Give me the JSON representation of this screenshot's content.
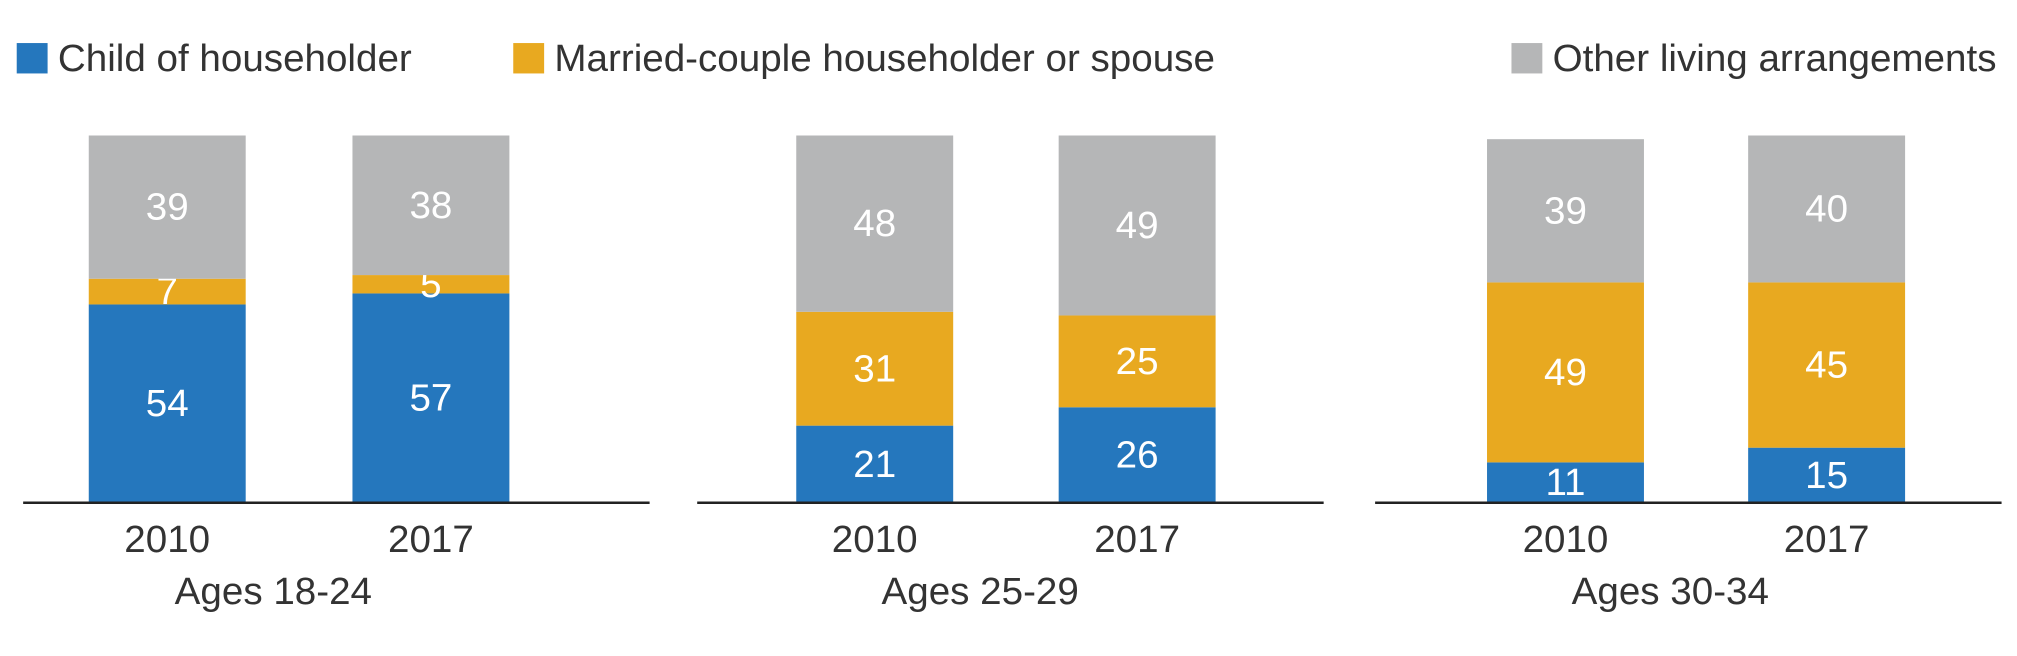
{
  "chart_data": {
    "type": "bar",
    "stacked": true,
    "groups": [
      "Ages 18-24",
      "Ages 25-29",
      "Ages 30-34"
    ],
    "categories": [
      "2010",
      "2017",
      "2010",
      "2017",
      "2010",
      "2017"
    ],
    "series": [
      {
        "name": "Child of householder",
        "color": "#2577bd",
        "values": [
          54,
          57,
          21,
          26,
          11,
          15
        ]
      },
      {
        "name": "Married-couple householder or spouse",
        "color": "#e8a920",
        "values": [
          7,
          5,
          31,
          25,
          49,
          45
        ]
      },
      {
        "name": "Other living arrangements",
        "color": "#b5b6b7",
        "values": [
          39,
          38,
          48,
          49,
          39,
          40
        ]
      }
    ],
    "ylim": [
      0,
      100
    ]
  }
}
